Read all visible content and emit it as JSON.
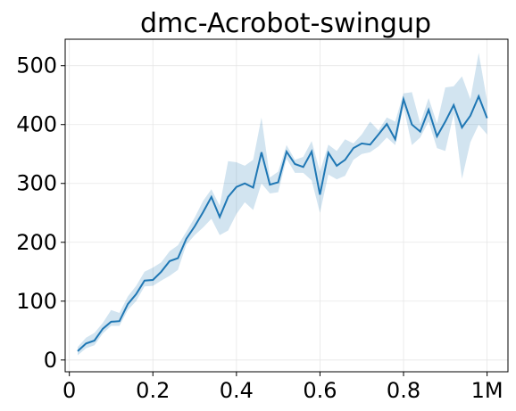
{
  "chart_data": {
    "type": "line",
    "title": "dmc-Acrobot-swingup",
    "xlabel": "",
    "ylabel": "",
    "xlim": [
      -0.01,
      1.05
    ],
    "ylim": [
      -20,
      545
    ],
    "grid": true,
    "x_ticks": [
      {
        "value": 0,
        "label": "0"
      },
      {
        "value": 0.2,
        "label": "0.2"
      },
      {
        "value": 0.4,
        "label": "0.4"
      },
      {
        "value": 0.6,
        "label": "0.6"
      },
      {
        "value": 0.8,
        "label": "0.8"
      },
      {
        "value": 1.0,
        "label": "1M"
      }
    ],
    "y_ticks": [
      {
        "value": 0,
        "label": "0"
      },
      {
        "value": 100,
        "label": "100"
      },
      {
        "value": 200,
        "label": "200"
      },
      {
        "value": 300,
        "label": "300"
      },
      {
        "value": 400,
        "label": "400"
      },
      {
        "value": 500,
        "label": "500"
      }
    ],
    "colors": {
      "line": "#1f77b4",
      "band": "#1f77b4"
    },
    "x": [
      0.02,
      0.04,
      0.06,
      0.08,
      0.1,
      0.12,
      0.14,
      0.16,
      0.18,
      0.2,
      0.22,
      0.24,
      0.26,
      0.28,
      0.3,
      0.32,
      0.34,
      0.36,
      0.38,
      0.4,
      0.42,
      0.44,
      0.46,
      0.48,
      0.5,
      0.52,
      0.54,
      0.56,
      0.58,
      0.6,
      0.62,
      0.64,
      0.66,
      0.68,
      0.7,
      0.72,
      0.74,
      0.76,
      0.78,
      0.8,
      0.82,
      0.84,
      0.86,
      0.88,
      0.9,
      0.92,
      0.94,
      0.96,
      0.98,
      1.0
    ],
    "series": [
      {
        "mean": [
          15,
          28,
          33,
          53,
          65,
          66,
          95,
          112,
          135,
          136,
          150,
          168,
          173,
          206,
          227,
          251,
          277,
          243,
          277,
          294,
          300,
          293,
          353,
          298,
          302,
          354,
          333,
          328,
          354,
          281,
          352,
          330,
          340,
          360,
          368,
          366,
          383,
          401,
          375,
          443,
          400,
          388,
          425,
          380,
          405,
          433,
          395,
          415,
          448,
          411
        ],
        "lower": [
          8,
          20,
          25,
          45,
          58,
          58,
          85,
          100,
          125,
          126,
          135,
          143,
          153,
          196,
          212,
          225,
          240,
          212,
          220,
          248,
          268,
          255,
          300,
          283,
          285,
          342,
          318,
          318,
          305,
          250,
          315,
          307,
          313,
          340,
          350,
          353,
          363,
          378,
          365,
          430,
          365,
          378,
          405,
          360,
          355,
          418,
          308,
          370,
          400,
          383
        ],
        "upper": [
          22,
          38,
          46,
          63,
          85,
          80,
          108,
          126,
          150,
          157,
          166,
          185,
          195,
          218,
          242,
          270,
          290,
          262,
          338,
          336,
          330,
          340,
          412,
          310,
          320,
          365,
          340,
          345,
          372,
          320,
          366,
          355,
          375,
          368,
          383,
          405,
          390,
          412,
          405,
          453,
          455,
          402,
          445,
          402,
          463,
          465,
          482,
          443,
          522,
          440
        ]
      }
    ]
  }
}
